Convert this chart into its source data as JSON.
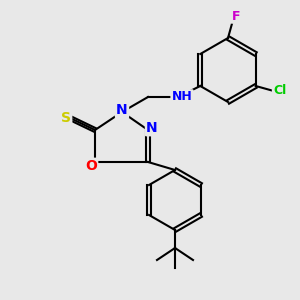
{
  "bg_color": "#e8e8e8",
  "bond_color": "#000000",
  "bond_width": 1.5,
  "atom_colors": {
    "N": "#0000ff",
    "O": "#ff0000",
    "S": "#cccc00",
    "Cl": "#00cc00",
    "F": "#cc00cc",
    "H": "#008888",
    "C": "#000000"
  },
  "font_size": 9
}
